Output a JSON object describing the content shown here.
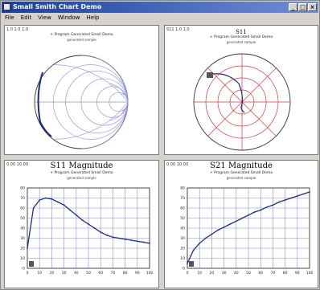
{
  "window": {
    "title": "Small Smith Chart Demo",
    "buttons": [
      "_",
      "□",
      "×"
    ]
  },
  "menu": {
    "items": [
      "File",
      "Edit",
      "View",
      "Window",
      "Help"
    ]
  },
  "panes": {
    "smith": {
      "header": "1.0   1.0   1.0",
      "title": "",
      "subtitle": "+ Program Generated Small Demo",
      "subtitle2": "generated sample"
    },
    "polar": {
      "header": "S11   1.0   1.0",
      "title": "S11",
      "subtitle": "+ Program Generated Small Demo",
      "subtitle2": "generated sample"
    },
    "mag1": {
      "header": "0.00   10.00",
      "title": "S11 Magnitude",
      "subtitle": "+ Program Generated Small Demo",
      "subtitle2": "generated sample"
    },
    "mag2": {
      "header": "0.00   10.00",
      "title": "S21 Magnitude",
      "subtitle": "+ Program Generated Small Demo",
      "subtitle2": "generated sample"
    }
  },
  "chart_data": [
    {
      "type": "line",
      "title": "S11 Magnitude",
      "x": [
        0,
        5,
        10,
        15,
        20,
        25,
        30,
        35,
        40,
        45,
        50,
        55,
        60,
        65,
        70,
        75,
        80,
        85,
        90,
        95,
        100
      ],
      "series": [
        {
          "values": [
            20,
            60,
            68,
            70,
            69,
            66,
            63,
            58,
            53,
            48,
            44,
            40,
            36,
            33,
            31,
            30,
            29,
            28,
            27,
            26,
            25
          ]
        }
      ],
      "ylim": [
        0,
        80
      ],
      "grid": true,
      "xtick_labels": [
        "0",
        "10",
        "20",
        "30",
        "40",
        "50",
        "60",
        "70",
        "80",
        "90",
        "100"
      ],
      "ytick_labels": [
        "0",
        "10",
        "20",
        "30",
        "40",
        "50",
        "60",
        "70",
        "80"
      ],
      "color": "#1a2f8a"
    },
    {
      "type": "line",
      "title": "S21 Magnitude",
      "x": [
        0,
        5,
        10,
        15,
        20,
        25,
        30,
        35,
        40,
        45,
        50,
        55,
        60,
        65,
        70,
        75,
        80,
        85,
        90,
        95,
        100
      ],
      "series": [
        {
          "values": [
            5,
            18,
            25,
            30,
            34,
            38,
            41,
            44,
            47,
            50,
            53,
            56,
            58,
            61,
            63,
            66,
            68,
            70,
            72,
            74,
            76
          ]
        }
      ],
      "ylim": [
        0,
        80
      ],
      "grid": true,
      "xtick_labels": [
        "0",
        "10",
        "20",
        "30",
        "40",
        "50",
        "60",
        "70",
        "80",
        "90",
        "100"
      ],
      "ytick_labels": [
        "0",
        "10",
        "20",
        "30",
        "40",
        "50",
        "60",
        "70",
        "80"
      ],
      "color": "#1a2f8a"
    }
  ],
  "colors": {
    "grid": "#8a8ae0",
    "trace": "#1a2f8a",
    "marker": "#d23b3b"
  }
}
